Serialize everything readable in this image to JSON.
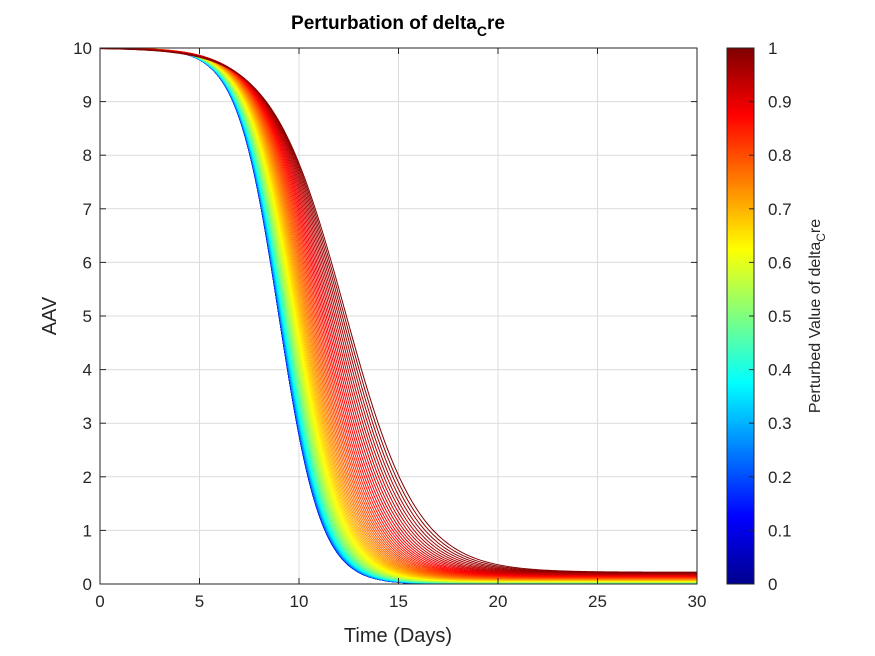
{
  "chart_data": {
    "type": "line",
    "title": {
      "main": "Perturbation of delta",
      "sub": "C",
      "tail": "re"
    },
    "xlabel": "Time (Days)",
    "ylabel": "AAV",
    "xlim": [
      0,
      30
    ],
    "ylim": [
      0,
      10
    ],
    "xticks": [
      0,
      5,
      10,
      15,
      20,
      25,
      30
    ],
    "yticks": [
      0,
      1,
      2,
      3,
      4,
      5,
      6,
      7,
      8,
      9,
      10
    ],
    "grid": true,
    "colormap": "jet",
    "colorbar": {
      "label": {
        "main": "Perturbed Value of delta",
        "sub": "C",
        "tail": "re"
      },
      "lim": [
        0,
        1
      ],
      "ticks": [
        0,
        0.1,
        0.2,
        0.3,
        0.4,
        0.5,
        0.6,
        0.7,
        0.8,
        0.9,
        1
      ]
    },
    "series_family": {
      "parameter_values": "0 to 1 in 100 steps",
      "initial_value": 10,
      "t_half_at_param_0": 9.0,
      "t_half_at_param_1": 12.3,
      "steepness_at_param_0": 0.95,
      "steepness_at_param_1": 0.55,
      "asymptote_at_param_0": 0.0,
      "asymptote_at_param_1": 0.22,
      "representative_series": [
        {
          "param": 0.0,
          "x": [
            0,
            5,
            7,
            8,
            9,
            10,
            11,
            12,
            14,
            20,
            30
          ],
          "y": [
            10,
            9.9,
            8.7,
            7.0,
            5.0,
            2.9,
            1.3,
            0.55,
            0.08,
            0.0,
            0.0
          ]
        },
        {
          "param": 0.5,
          "x": [
            0,
            5,
            7,
            8,
            9,
            10,
            11,
            12,
            14,
            20,
            30
          ],
          "y": [
            10,
            9.95,
            9.5,
            8.4,
            6.9,
            4.9,
            3.0,
            1.6,
            0.45,
            0.07,
            0.05
          ]
        },
        {
          "param": 1.0,
          "x": [
            0,
            5,
            7,
            8,
            9,
            10,
            11,
            12,
            14,
            20,
            30
          ],
          "y": [
            10,
            9.98,
            9.8,
            9.4,
            8.6,
            7.5,
            6.0,
            5.1,
            2.7,
            0.55,
            0.25
          ]
        }
      ]
    }
  }
}
